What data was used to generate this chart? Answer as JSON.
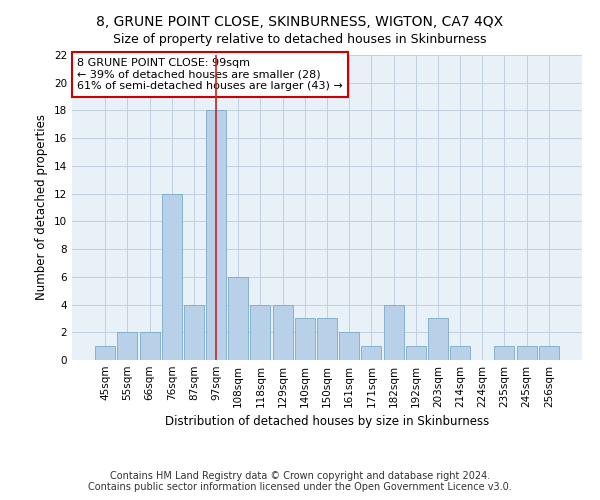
{
  "title": "8, GRUNE POINT CLOSE, SKINBURNESS, WIGTON, CA7 4QX",
  "subtitle": "Size of property relative to detached houses in Skinburness",
  "xlabel": "Distribution of detached houses by size in Skinburness",
  "ylabel": "Number of detached properties",
  "categories": [
    "45sqm",
    "55sqm",
    "66sqm",
    "76sqm",
    "87sqm",
    "97sqm",
    "108sqm",
    "118sqm",
    "129sqm",
    "140sqm",
    "150sqm",
    "161sqm",
    "171sqm",
    "182sqm",
    "192sqm",
    "203sqm",
    "214sqm",
    "224sqm",
    "235sqm",
    "245sqm",
    "256sqm"
  ],
  "values": [
    1,
    2,
    2,
    12,
    4,
    18,
    6,
    4,
    4,
    3,
    3,
    2,
    1,
    4,
    1,
    3,
    1,
    0,
    1,
    1,
    1
  ],
  "bar_color": "#b8d0e8",
  "bar_edge_color": "#7aaaca",
  "highlight_index": 5,
  "highlight_line_color": "#cc2222",
  "annotation_text": "8 GRUNE POINT CLOSE: 99sqm\n← 39% of detached houses are smaller (28)\n61% of semi-detached houses are larger (43) →",
  "annotation_box_color": "#ffffff",
  "annotation_box_edge": "#cc0000",
  "ylim": [
    0,
    22
  ],
  "yticks": [
    0,
    2,
    4,
    6,
    8,
    10,
    12,
    14,
    16,
    18,
    20,
    22
  ],
  "footer_line1": "Contains HM Land Registry data © Crown copyright and database right 2024.",
  "footer_line2": "Contains public sector information licensed under the Open Government Licence v3.0.",
  "title_fontsize": 10,
  "subtitle_fontsize": 9,
  "axis_label_fontsize": 8.5,
  "tick_fontsize": 7.5,
  "annotation_fontsize": 8,
  "footer_fontsize": 7,
  "background_color": "#e8f0f8",
  "grid_color": "#c0cfe0",
  "fig_width": 6.0,
  "fig_height": 5.0
}
